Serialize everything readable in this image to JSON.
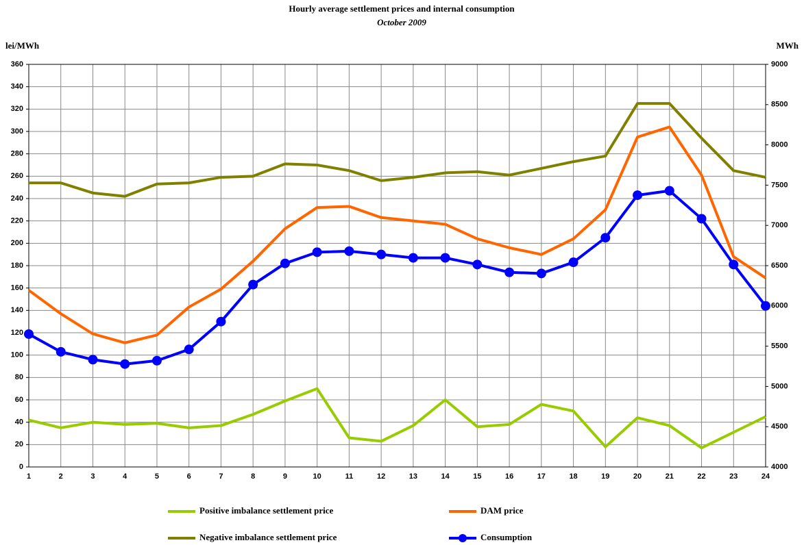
{
  "chart_data": {
    "type": "line",
    "title": "Hourly average settlement prices and internal consumption",
    "subtitle": "October 2009",
    "y_label": "lei/MWh",
    "y2_label": "MWh",
    "categories": [
      1,
      2,
      3,
      4,
      5,
      6,
      7,
      8,
      9,
      10,
      11,
      12,
      13,
      14,
      15,
      16,
      17,
      18,
      19,
      20,
      21,
      22,
      23,
      24
    ],
    "ylim": [
      0,
      360
    ],
    "yticks": [
      0,
      20,
      40,
      60,
      80,
      100,
      120,
      140,
      160,
      180,
      200,
      220,
      240,
      260,
      280,
      300,
      320,
      340,
      360
    ],
    "y2lim": [
      4000,
      9000
    ],
    "y2ticks": [
      4000,
      4500,
      5000,
      5500,
      6000,
      6500,
      7000,
      7500,
      8000,
      8500,
      9000
    ],
    "grid": true,
    "legend": "bottom",
    "series": [
      {
        "name": "Positive imbalance settlement price",
        "color": "#99cc00",
        "values": [
          42,
          35,
          40,
          38,
          39,
          35,
          37,
          47,
          59,
          70,
          26,
          23,
          37,
          60,
          36,
          38,
          56,
          50,
          18,
          44,
          37,
          17,
          31,
          45
        ]
      },
      {
        "name": "DAM price",
        "color": "#ff6600",
        "values": [
          158,
          137,
          119,
          111,
          118,
          143,
          159,
          184,
          213,
          232,
          233,
          223,
          220,
          217,
          204,
          196,
          190,
          204,
          230,
          295,
          304,
          261,
          188,
          169
        ]
      },
      {
        "name": "Negative imbalance settlement price",
        "color": "#808000",
        "values": [
          254,
          254,
          245,
          242,
          253,
          254,
          259,
          260,
          271,
          270,
          265,
          256,
          259,
          263,
          264,
          261,
          267,
          273,
          278,
          325,
          325,
          294,
          265,
          259
        ]
      },
      {
        "name": "Consumption",
        "color": "#0000ff",
        "axis": "y2",
        "marker": true,
        "values": [
          5650,
          5430,
          5333,
          5278,
          5320,
          5460,
          5805,
          6265,
          6528,
          6667,
          6680,
          6639,
          6597,
          6597,
          6514,
          6417,
          6403,
          6542,
          6847,
          7375,
          7430,
          7083,
          6514,
          6000
        ]
      }
    ]
  }
}
